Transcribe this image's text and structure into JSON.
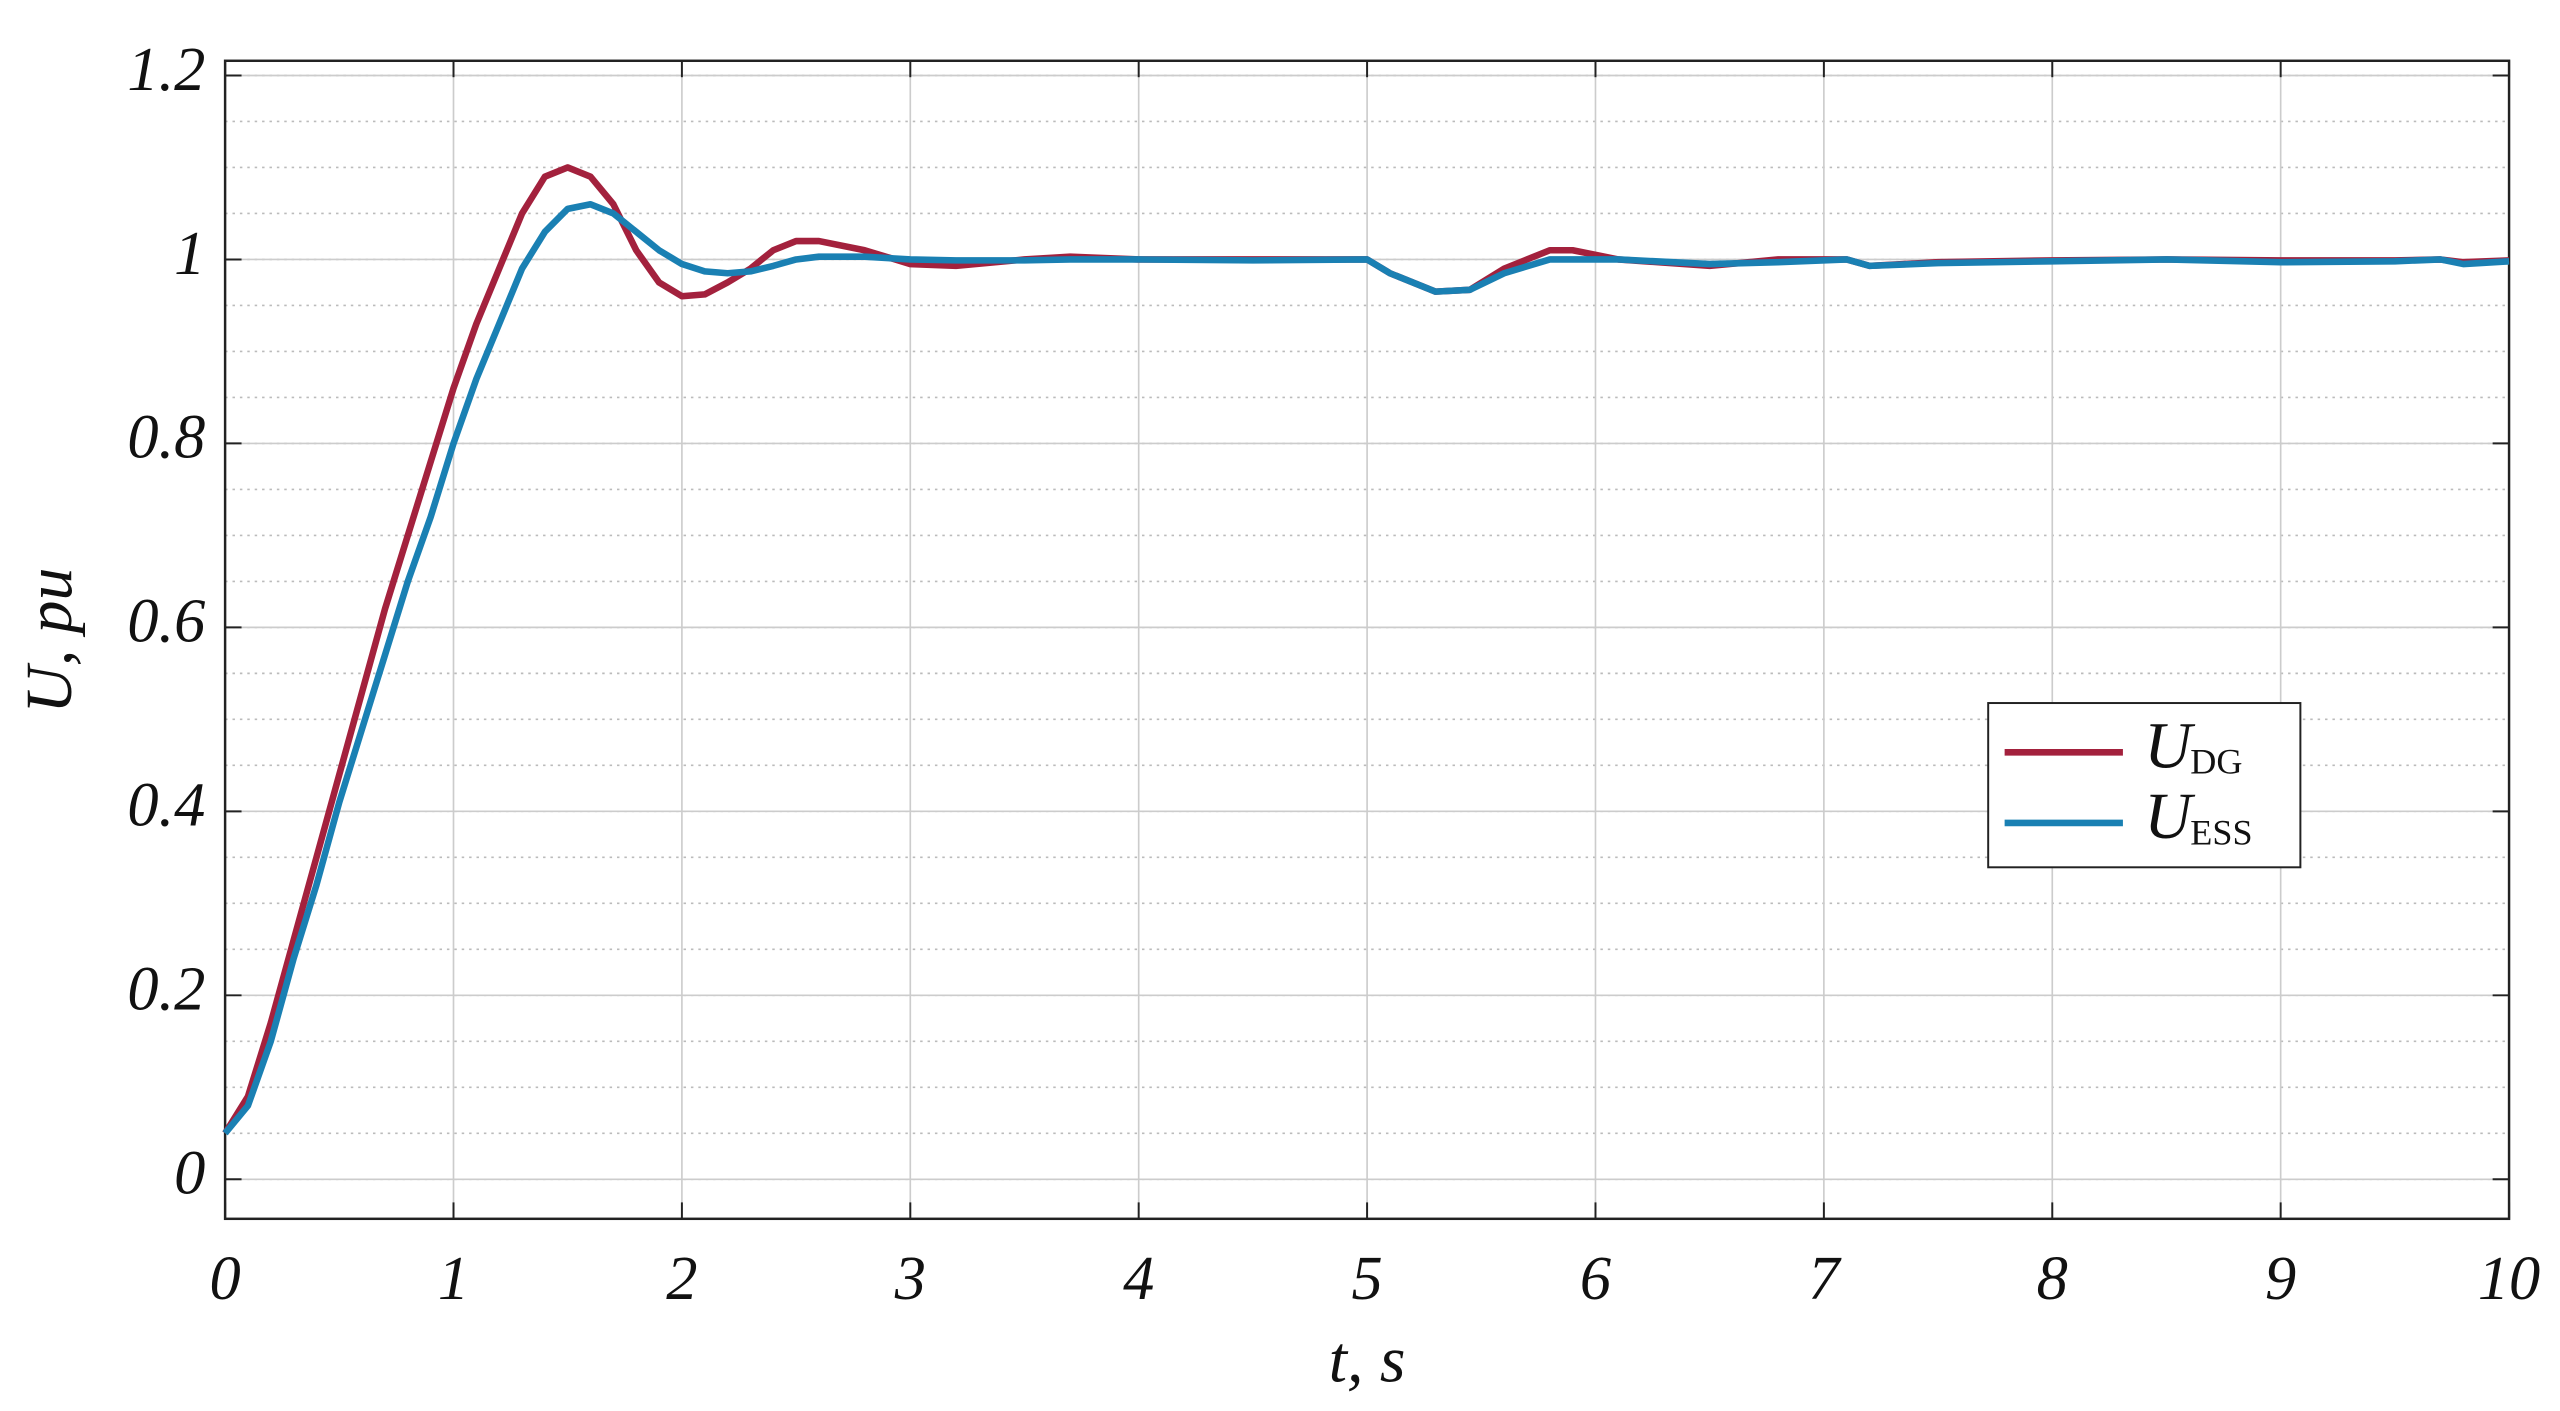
{
  "chart_data": {
    "type": "line",
    "x_label": "t, s",
    "y_label": "U, pu",
    "x": [
      0,
      0.1,
      0.2,
      0.3,
      0.4,
      0.5,
      0.6,
      0.7,
      0.8,
      0.9,
      1.0,
      1.1,
      1.2,
      1.3,
      1.4,
      1.5,
      1.6,
      1.7,
      1.8,
      1.9,
      2.0,
      2.1,
      2.2,
      2.3,
      2.4,
      2.5,
      2.6,
      2.8,
      3.0,
      3.2,
      3.5,
      3.7,
      4.0,
      4.5,
      5.0,
      5.1,
      5.3,
      5.45,
      5.6,
      5.8,
      5.9,
      6.1,
      6.5,
      6.8,
      7.1,
      7.2,
      7.5,
      8.0,
      8.5,
      9.0,
      9.5,
      9.7,
      9.8,
      10
    ],
    "series": [
      {
        "name": "U",
        "subscript": "DG",
        "color": "#a3213d",
        "values": [
          0.05,
          0.09,
          0.17,
          0.26,
          0.35,
          0.44,
          0.53,
          0.62,
          0.7,
          0.78,
          0.86,
          0.93,
          0.99,
          1.05,
          1.09,
          1.1,
          1.09,
          1.06,
          1.01,
          0.975,
          0.96,
          0.962,
          0.975,
          0.99,
          1.01,
          1.02,
          1.02,
          1.01,
          0.995,
          0.993,
          1.0,
          1.003,
          1.0,
          1.0,
          1.0,
          0.985,
          0.965,
          0.967,
          0.99,
          1.01,
          1.01,
          1.0,
          0.993,
          1.0,
          1.0,
          0.993,
          0.997,
          0.999,
          1.0,
          0.999,
          0.999,
          1.0,
          0.997,
          0.999
        ]
      },
      {
        "name": "U",
        "subscript": "ESS",
        "color": "#1a80b3",
        "values": [
          0.05,
          0.08,
          0.15,
          0.24,
          0.32,
          0.41,
          0.49,
          0.57,
          0.65,
          0.72,
          0.8,
          0.87,
          0.93,
          0.99,
          1.03,
          1.055,
          1.06,
          1.05,
          1.03,
          1.01,
          0.995,
          0.987,
          0.985,
          0.987,
          0.993,
          1.0,
          1.003,
          1.003,
          1.0,
          0.999,
          0.999,
          1.0,
          1.0,
          0.999,
          1.0,
          0.985,
          0.965,
          0.967,
          0.985,
          1.0,
          1.0,
          1.0,
          0.995,
          0.997,
          1.0,
          0.993,
          0.996,
          0.998,
          1.0,
          0.997,
          0.998,
          1.0,
          0.995,
          0.998
        ]
      }
    ],
    "xlim": [
      0,
      10
    ],
    "xticks": [
      0,
      1,
      2,
      3,
      4,
      5,
      6,
      7,
      8,
      9,
      10
    ],
    "ylim": [
      -0.043,
      1.216
    ],
    "yticks": [
      0,
      0.2,
      0.4,
      0.6,
      0.8,
      1,
      1.2
    ],
    "grid": true,
    "minor_grid": true,
    "legend": "right"
  }
}
